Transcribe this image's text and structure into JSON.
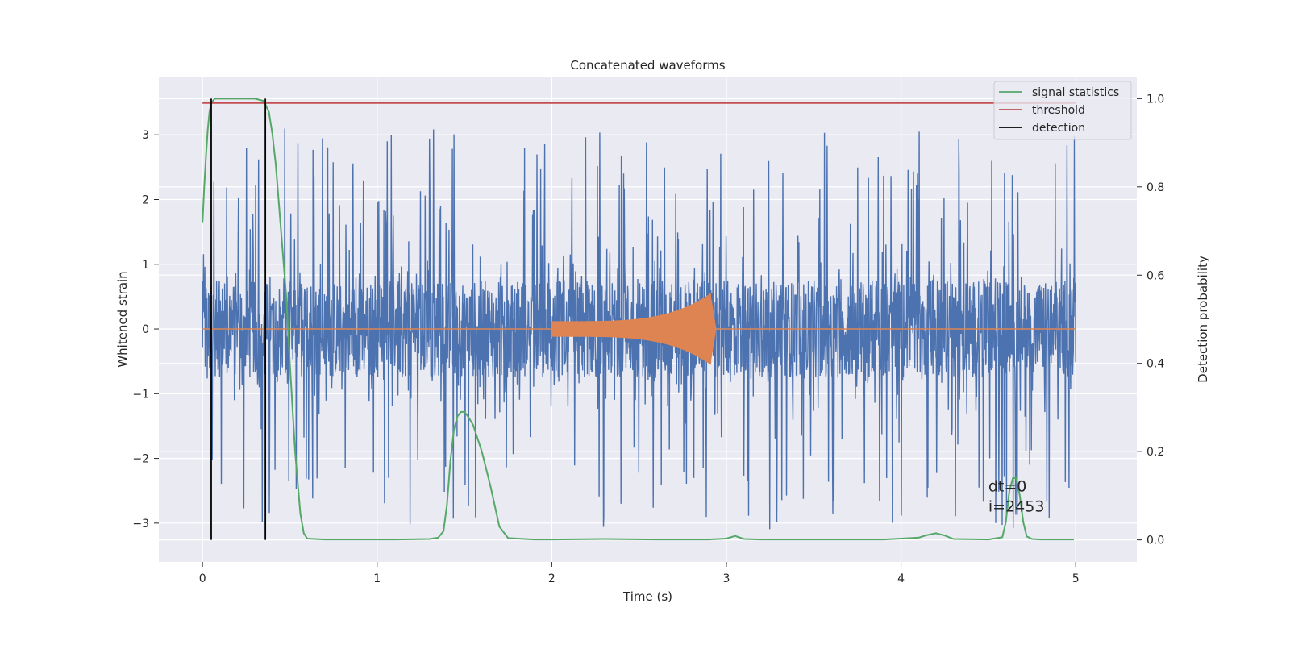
{
  "chart_data": {
    "type": "line",
    "title": "Concatenated waveforms",
    "xlabel": "Time (s)",
    "ylabel": "Whitened strain",
    "ylabel_right": "Detection probability",
    "xlim": [
      -0.25,
      5.35
    ],
    "ylim": [
      -3.6,
      3.9
    ],
    "ylim_right": [
      -0.05,
      1.05
    ],
    "x_ticks": [
      0,
      1,
      2,
      3,
      4,
      5
    ],
    "y_ticks": [
      -3,
      -2,
      -1,
      0,
      1,
      2,
      3
    ],
    "y_ticks_right": [
      0.0,
      0.2,
      0.4,
      0.6,
      0.8,
      1.0
    ],
    "y_tick_labels": [
      "−3",
      "−2",
      "−1",
      "0",
      "1",
      "2",
      "3"
    ],
    "y_tick_labels_right": [
      "0.0",
      "0.2",
      "0.4",
      "0.6",
      "0.8",
      "1.0"
    ],
    "grid": true,
    "legend_position": "top-right",
    "colors": {
      "background": "#eaeaf2",
      "grid": "#ffffff",
      "strain": "#4c72b0",
      "template": "#dd8452",
      "signal_statistics": "#55a868",
      "threshold": "#c44e52",
      "detection": "#000000"
    },
    "strain_noise": {
      "x_range": [
        0,
        5
      ],
      "core_amplitude": 0.75,
      "peak_min": -3.35,
      "peak_max": 3.3
    },
    "template_chirp": {
      "x_start": 2.0,
      "x_merger": 2.91,
      "x_end": 2.94,
      "amp_start": 0.12,
      "amp_peak": 0.55
    },
    "series": [
      {
        "name": "signal statistics",
        "axis": "right",
        "x": [
          0.0,
          0.01,
          0.02,
          0.03,
          0.04,
          0.05,
          0.07,
          0.1,
          0.2,
          0.3,
          0.35,
          0.38,
          0.4,
          0.42,
          0.45,
          0.48,
          0.5,
          0.53,
          0.56,
          0.58,
          0.6,
          0.7,
          0.9,
          1.1,
          1.3,
          1.35,
          1.38,
          1.4,
          1.42,
          1.44,
          1.46,
          1.48,
          1.5,
          1.52,
          1.55,
          1.6,
          1.65,
          1.7,
          1.75,
          1.9,
          2.0,
          2.3,
          2.6,
          2.9,
          3.0,
          3.05,
          3.1,
          3.2,
          3.5,
          3.9,
          4.1,
          4.15,
          4.2,
          4.25,
          4.3,
          4.5,
          4.58,
          4.6,
          4.62,
          4.64,
          4.66,
          4.68,
          4.7,
          4.72,
          4.75,
          4.8,
          4.9,
          4.99
        ],
        "y": [
          0.72,
          0.8,
          0.87,
          0.93,
          0.97,
          0.99,
          1.0,
          1.0,
          1.0,
          1.0,
          0.995,
          0.97,
          0.92,
          0.85,
          0.7,
          0.55,
          0.4,
          0.2,
          0.06,
          0.015,
          0.003,
          0.001,
          0.001,
          0.001,
          0.002,
          0.005,
          0.02,
          0.08,
          0.18,
          0.25,
          0.28,
          0.29,
          0.29,
          0.28,
          0.26,
          0.2,
          0.12,
          0.03,
          0.004,
          0.001,
          0.001,
          0.002,
          0.001,
          0.001,
          0.003,
          0.009,
          0.002,
          0.001,
          0.001,
          0.001,
          0.005,
          0.011,
          0.015,
          0.01,
          0.002,
          0.001,
          0.006,
          0.04,
          0.11,
          0.14,
          0.14,
          0.1,
          0.04,
          0.008,
          0.002,
          0.001,
          0.001,
          0.001
        ]
      },
      {
        "name": "threshold",
        "axis": "right",
        "x": [
          0.0,
          5.0
        ],
        "y": [
          0.99,
          0.99
        ]
      },
      {
        "name": "detection",
        "axis": "right",
        "segments": [
          {
            "x": 0.05,
            "y": [
              0.0,
              1.0
            ]
          },
          {
            "x": 0.36,
            "y": [
              0.0,
              1.0
            ]
          }
        ]
      }
    ],
    "annotation": {
      "lines": [
        "dt=0",
        "i=2453"
      ],
      "x": 4.5,
      "y_right": [
        0.11,
        0.064
      ]
    }
  }
}
